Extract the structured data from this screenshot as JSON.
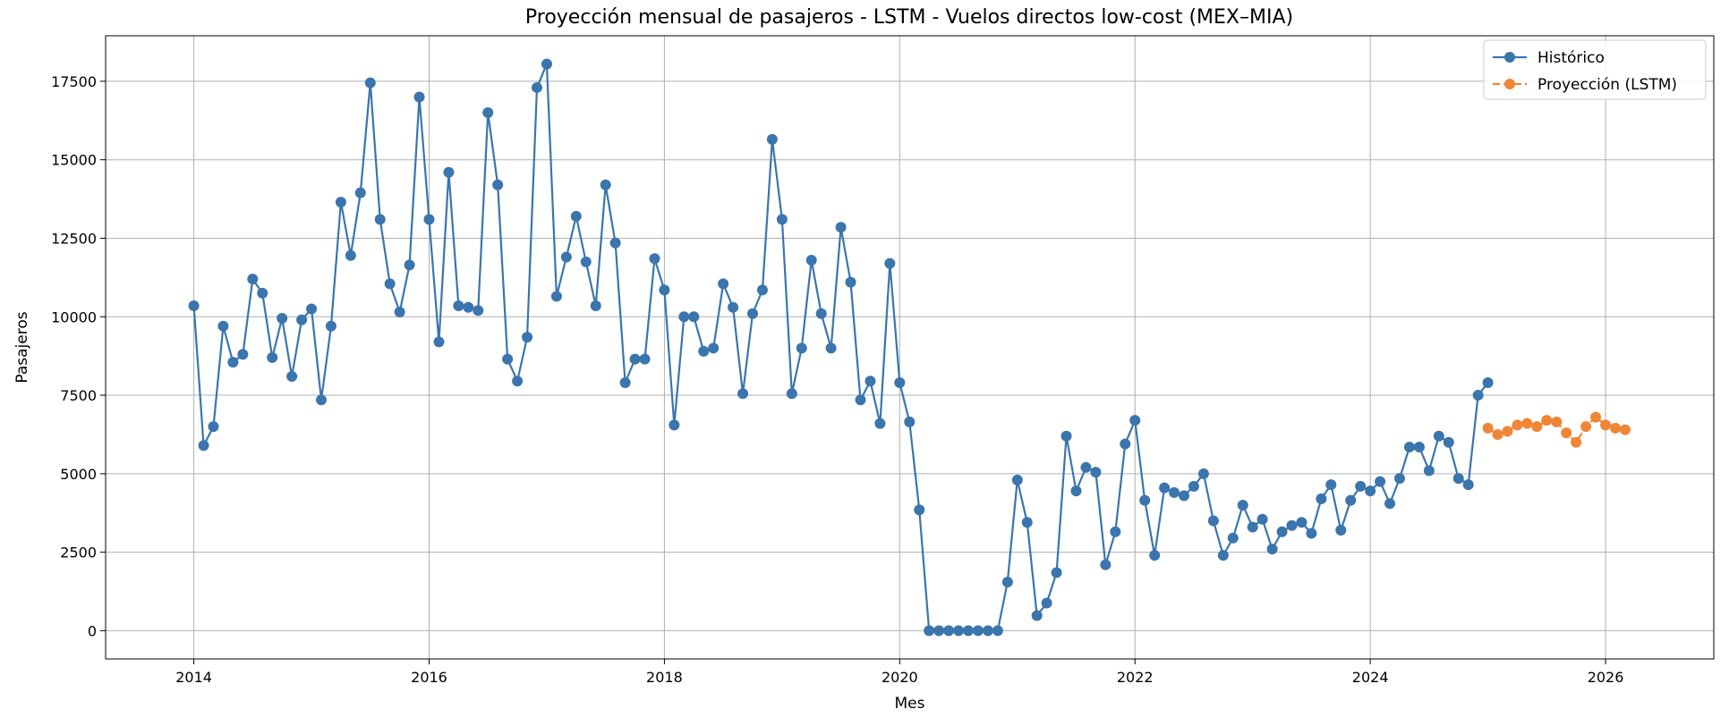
{
  "chart_data": {
    "type": "line",
    "title": "Proyección mensual de pasajeros - LSTM - Vuelos directos low-cost (MEX–MIA)",
    "xlabel": "Mes",
    "ylabel": "Pasajeros",
    "xlim": [
      2013.25,
      2026.92
    ],
    "ylim": [
      -900,
      18950
    ],
    "xticks": [
      2014,
      2016,
      2018,
      2020,
      2022,
      2024,
      2026
    ],
    "xtick_labels": [
      "2014",
      "2016",
      "2018",
      "2020",
      "2022",
      "2024",
      "2026"
    ],
    "yticks": [
      0,
      2500,
      5000,
      7500,
      10000,
      12500,
      15000,
      17500
    ],
    "ytick_labels": [
      "0",
      "2500",
      "5000",
      "7500",
      "10000",
      "12500",
      "15000",
      "17500"
    ],
    "grid": true,
    "legend_position": "top-right",
    "colors": {
      "historico": "#3a75ae",
      "proyeccion": "#ef8636"
    },
    "series": [
      {
        "name": "Histórico",
        "style": "solid",
        "start": "2014-01",
        "values": [
          10350,
          5900,
          6500,
          9700,
          8550,
          8800,
          11200,
          10750,
          8700,
          9950,
          8100,
          9900,
          10250,
          7350,
          9700,
          13650,
          11950,
          13950,
          17450,
          13100,
          11050,
          10150,
          11650,
          17000,
          13100,
          9200,
          14600,
          10350,
          10300,
          10200,
          16500,
          14200,
          8650,
          7950,
          9350,
          17300,
          18050,
          10650,
          11900,
          13200,
          11750,
          10350,
          14200,
          12350,
          7900,
          8650,
          8650,
          11850,
          10850,
          6550,
          10000,
          10000,
          8900,
          9000,
          11050,
          10300,
          7550,
          10100,
          10850,
          15650,
          13100,
          7550,
          9000,
          11800,
          10100,
          9000,
          12850,
          11100,
          7350,
          7950,
          6600,
          11700,
          7900,
          6650,
          3850,
          0,
          0,
          0,
          0,
          0,
          0,
          0,
          0,
          1550,
          4800,
          3450,
          480,
          880,
          1850,
          6200,
          4450,
          5200,
          5050,
          2100,
          3150,
          5950,
          6700,
          4150,
          2400,
          4550,
          4400,
          4300,
          4600,
          5000,
          3500,
          2400,
          2950,
          4000,
          3300,
          3550,
          2600,
          3150,
          3350,
          3450,
          3100,
          4200,
          4650,
          3200,
          4150,
          4600,
          4450,
          4750,
          4050,
          4850,
          5850,
          5850,
          5100,
          6200,
          6000,
          4850,
          4650,
          7500,
          7900
        ]
      },
      {
        "name": "Proyección (LSTM)",
        "style": "dashed",
        "start": "2025-01",
        "values": [
          6450,
          6250,
          6350,
          6550,
          6600,
          6500,
          6700,
          6650,
          6300,
          6000,
          6500,
          6800,
          6550,
          6450,
          6400
        ]
      }
    ]
  }
}
